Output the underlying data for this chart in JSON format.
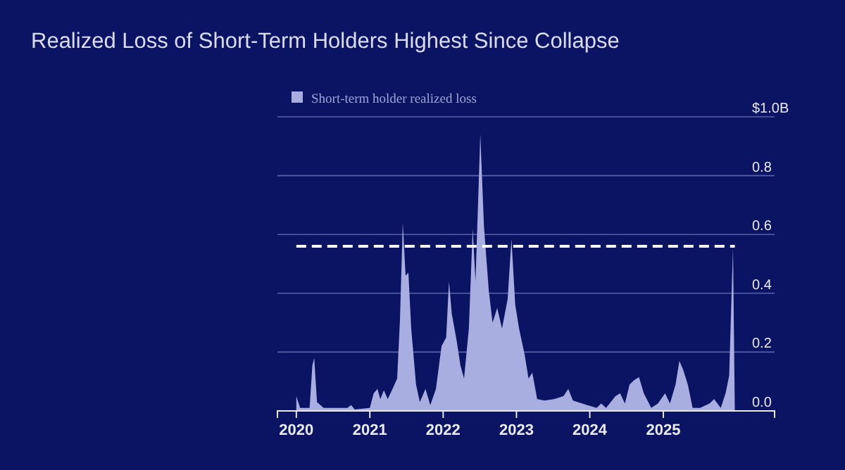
{
  "chart_data": {
    "type": "area",
    "title": "Realized Loss of Short-Term Holders Highest Since Collapse",
    "x": [
      "2020-01-01",
      "2020-01-20",
      "2020-03-07",
      "2020-03-21",
      "2020-03-30",
      "2020-04-13",
      "2020-05-16",
      "2020-09-11",
      "2020-09-30",
      "2020-10-18",
      "2021-01-01",
      "2021-01-20",
      "2021-02-08",
      "2021-02-22",
      "2021-03-12",
      "2021-03-31",
      "2021-04-24",
      "2021-05-17",
      "2021-05-31",
      "2021-06-14",
      "2021-06-28",
      "2021-07-12",
      "2021-07-26",
      "2021-08-19",
      "2021-09-07",
      "2021-10-05",
      "2021-10-29",
      "2021-11-26",
      "2021-12-24",
      "2022-01-16",
      "2022-01-30",
      "2022-02-13",
      "2022-03-09",
      "2022-03-28",
      "2022-04-15",
      "2022-05-09",
      "2022-05-28",
      "2022-06-11",
      "2022-07-05",
      "2022-07-23",
      "2022-08-16",
      "2022-09-04",
      "2022-09-27",
      "2022-10-21",
      "2022-11-18",
      "2022-12-07",
      "2022-12-26",
      "2023-01-14",
      "2023-02-11",
      "2023-03-02",
      "2023-03-21",
      "2023-04-14",
      "2023-05-21",
      "2023-07-07",
      "2023-08-23",
      "2023-09-16",
      "2023-10-09",
      "2023-12-19",
      "2024-02-04",
      "2024-02-27",
      "2024-03-22",
      "2024-05-08",
      "2024-05-31",
      "2024-06-24",
      "2024-07-17",
      "2024-08-10",
      "2024-09-02",
      "2024-09-26",
      "2024-11-02",
      "2024-12-05",
      "2025-01-10",
      "2025-02-03",
      "2025-03-03",
      "2025-03-22",
      "2025-04-10",
      "2025-05-03",
      "2025-05-27",
      "2025-07-03",
      "2025-08-19",
      "2025-09-11",
      "2025-10-14",
      "2025-11-07",
      "2025-11-25",
      "2025-12-14",
      "2025-12-23"
    ],
    "series": [
      {
        "name": "Short-term holder realized loss",
        "color": "#a9aee0",
        "values": [
          0.05,
          0.01,
          0.01,
          0.155,
          0.18,
          0.03,
          0.01,
          0.01,
          0.02,
          0.005,
          0.01,
          0.06,
          0.075,
          0.04,
          0.07,
          0.04,
          0.075,
          0.11,
          0.31,
          0.64,
          0.46,
          0.47,
          0.28,
          0.09,
          0.03,
          0.075,
          0.02,
          0.075,
          0.22,
          0.25,
          0.44,
          0.33,
          0.24,
          0.155,
          0.11,
          0.28,
          0.62,
          0.44,
          0.94,
          0.63,
          0.41,
          0.3,
          0.35,
          0.28,
          0.38,
          0.585,
          0.36,
          0.28,
          0.19,
          0.11,
          0.13,
          0.04,
          0.035,
          0.04,
          0.05,
          0.075,
          0.035,
          0.02,
          0.01,
          0.025,
          0.01,
          0.05,
          0.06,
          0.025,
          0.09,
          0.105,
          0.115,
          0.06,
          0.01,
          0.025,
          0.06,
          0.025,
          0.09,
          0.17,
          0.14,
          0.09,
          0.01,
          0.01,
          0.025,
          0.04,
          0.01,
          0.06,
          0.12,
          0.555,
          0
        ]
      }
    ],
    "xlim": [
      "2019-09-29",
      "2026-07-09"
    ],
    "xticks": [
      {
        "value": "2020-01-01",
        "label": "2020"
      },
      {
        "value": "2021-01-01",
        "label": "2021"
      },
      {
        "value": "2022-01-01",
        "label": "2022"
      },
      {
        "value": "2023-01-01",
        "label": "2023"
      },
      {
        "value": "2024-01-01",
        "label": "2024"
      },
      {
        "value": "2025-01-01",
        "label": "2025"
      }
    ],
    "ylim": [
      0,
      1.0
    ],
    "yticks": [
      {
        "value": 0,
        "label": "0.0"
      },
      {
        "value": 0.2,
        "label": "0.2"
      },
      {
        "value": 0.4,
        "label": "0.4"
      },
      {
        "value": 0.6,
        "label": "0.6"
      },
      {
        "value": 0.8,
        "label": "0.8"
      },
      {
        "value": 1.0,
        "label": "$1.0B"
      }
    ],
    "ref_lines": [
      {
        "axis": "y",
        "value": 0.56,
        "color": "#ffffff",
        "line_style": "dashed"
      }
    ],
    "grid": "y",
    "legend": "top left"
  }
}
